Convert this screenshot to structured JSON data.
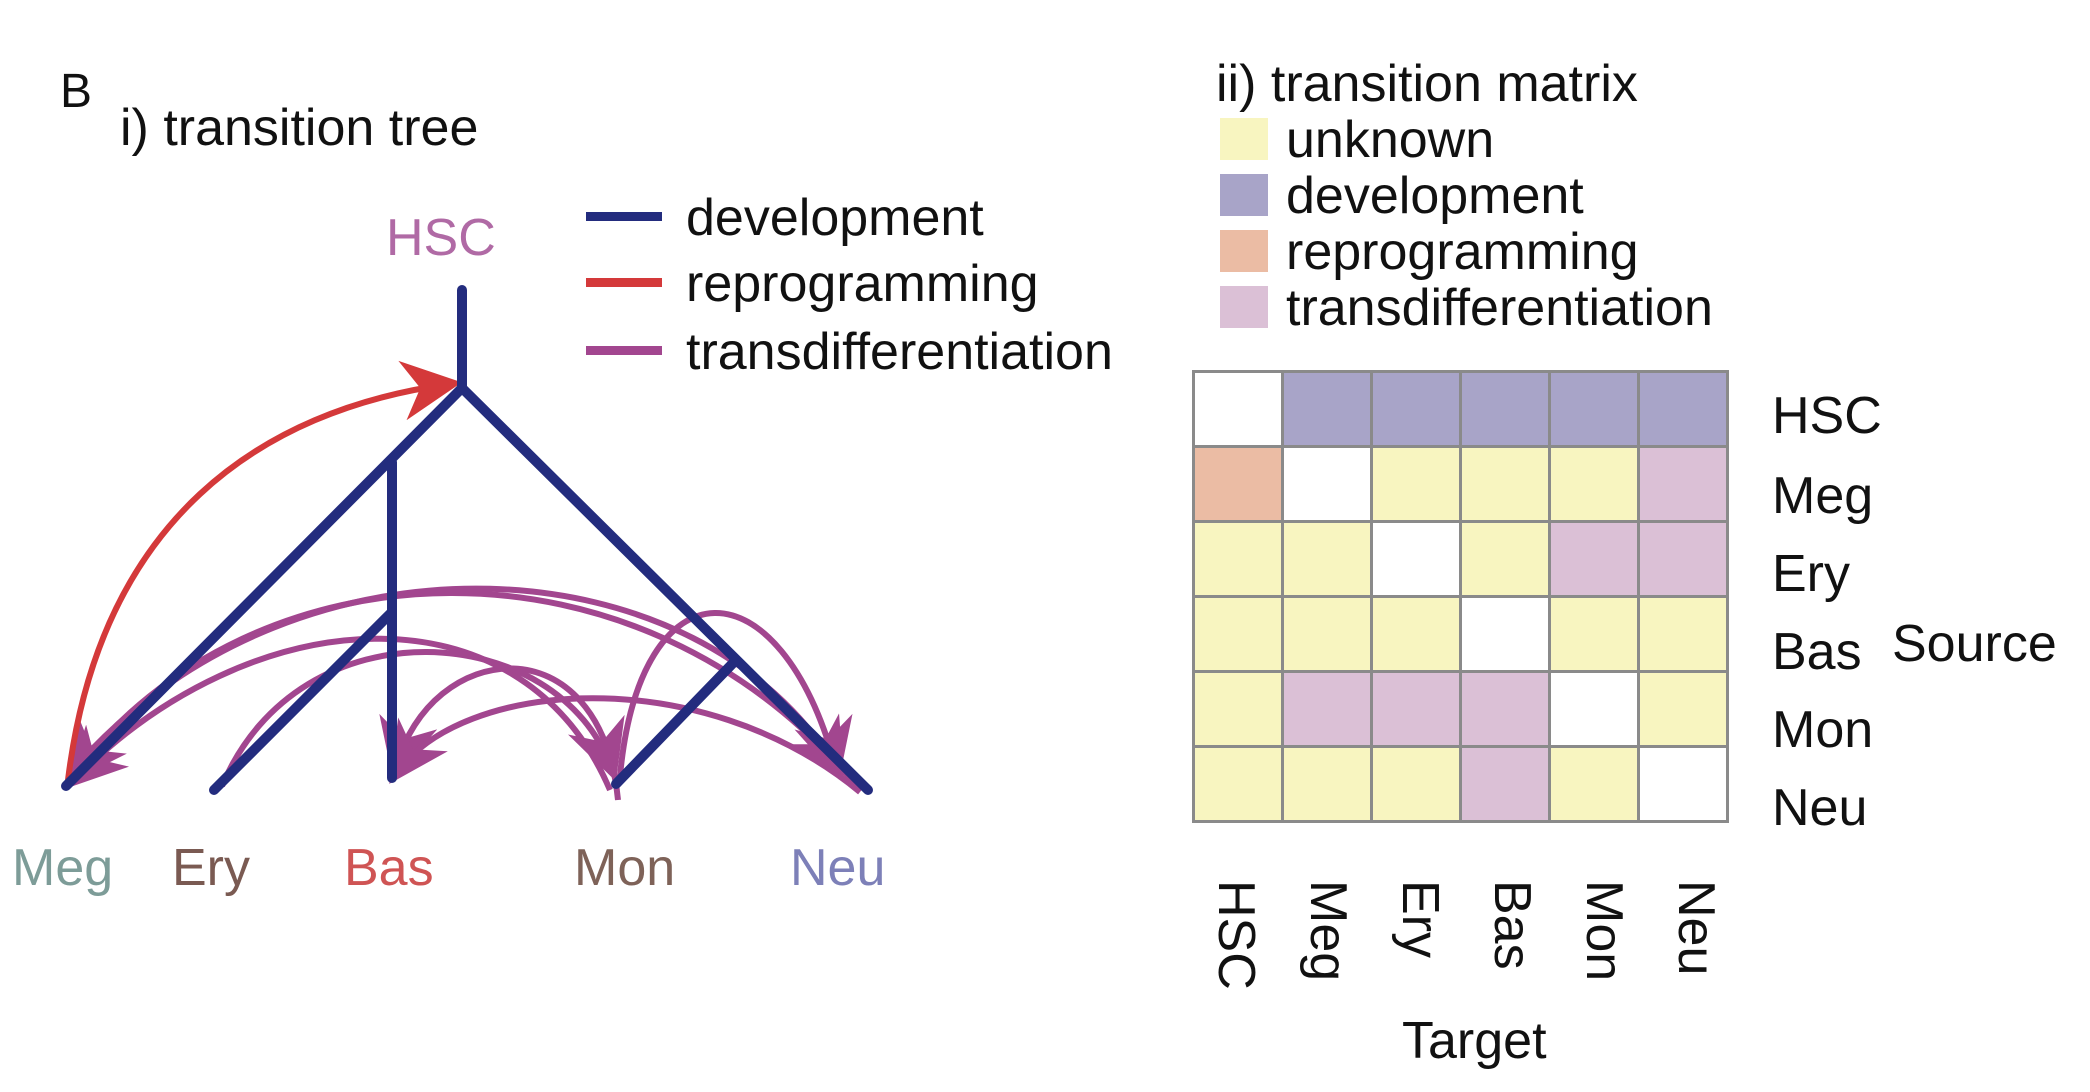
{
  "panel_letter": "B",
  "tree": {
    "title": "i) transition tree",
    "root_label": "HSC",
    "root_color": "#b06aa5",
    "leaves": [
      {
        "label": "Meg",
        "color": "#7d9c98"
      },
      {
        "label": "Ery",
        "color": "#7a5a52"
      },
      {
        "label": "Bas",
        "color": "#cf5454"
      },
      {
        "label": "Mon",
        "color": "#7e6258"
      },
      {
        "label": "Neu",
        "color": "#7d80b8"
      }
    ],
    "legend": [
      {
        "label": "development",
        "color": "#232c7e"
      },
      {
        "label": "reprogramming",
        "color": "#d4393a"
      },
      {
        "label": "transdifferentiation",
        "color": "#a2468f"
      }
    ]
  },
  "matrix": {
    "title": "ii) transition matrix",
    "legend": [
      {
        "key": "unknown",
        "label": "unknown",
        "color": "#f8f5c0"
      },
      {
        "key": "development",
        "label": "development",
        "color": "#a8a4c8"
      },
      {
        "key": "reprogramming",
        "label": "reprogramming",
        "color": "#ebbca4"
      },
      {
        "key": "transdifferentiation",
        "label": "transdifferentiation",
        "color": "#dbc0d6"
      }
    ],
    "self_color": "#ffffff",
    "rows": [
      "HSC",
      "Meg",
      "Ery",
      "Bas",
      "Mon",
      "Neu"
    ],
    "cols": [
      "HSC",
      "Meg",
      "Ery",
      "Bas",
      "Mon",
      "Neu"
    ],
    "cells": [
      [
        "self",
        "development",
        "development",
        "development",
        "development",
        "development"
      ],
      [
        "reprogramming",
        "self",
        "unknown",
        "unknown",
        "unknown",
        "transdifferentiation"
      ],
      [
        "unknown",
        "unknown",
        "self",
        "unknown",
        "transdifferentiation",
        "transdifferentiation"
      ],
      [
        "unknown",
        "unknown",
        "unknown",
        "self",
        "unknown",
        "unknown"
      ],
      [
        "unknown",
        "transdifferentiation",
        "transdifferentiation",
        "transdifferentiation",
        "self",
        "unknown"
      ],
      [
        "unknown",
        "unknown",
        "unknown",
        "transdifferentiation",
        "unknown",
        "self"
      ]
    ],
    "source_label": "Source",
    "target_label": "Target"
  }
}
